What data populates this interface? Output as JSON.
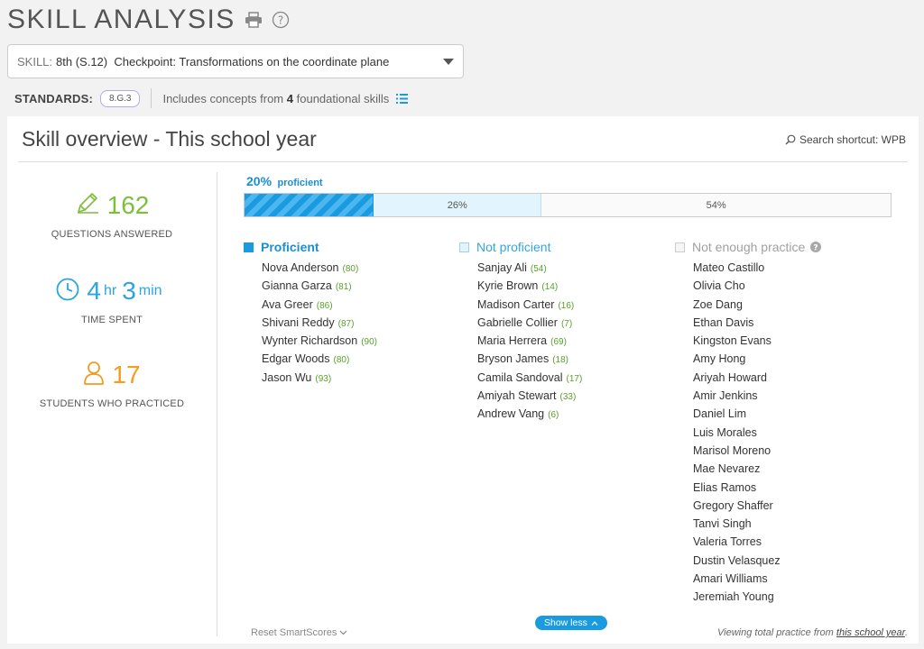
{
  "header": {
    "title": "SKILL ANALYSIS"
  },
  "skill_select": {
    "label": "SKILL:",
    "value": "8th (S.12)  Checkpoint: Transformations on the coordinate plane"
  },
  "standards": {
    "label": "STANDARDS:",
    "badge": "8.G.3",
    "includes_prefix": "Includes concepts from",
    "includes_count": "4",
    "includes_suffix": "foundational skills"
  },
  "panel": {
    "title": "Skill overview - This school year",
    "search_shortcut": "Search shortcut: WPB"
  },
  "stats": {
    "questions_answered": "162",
    "questions_caption": "QUESTIONS ANSWERED",
    "time_hr": "4",
    "time_hr_unit": "hr",
    "time_min": "3",
    "time_min_unit": "min",
    "time_caption": "TIME SPENT",
    "students": "17",
    "students_caption": "STUDENTS WHO PRACTICED"
  },
  "progress": {
    "proficient_pct": "20%",
    "proficient_word": "proficient",
    "not_proficient_pct": "26%",
    "not_enough_pct": "54%",
    "fractions": [
      0.2,
      0.26,
      0.54
    ]
  },
  "columns": {
    "proficient": {
      "title": "Proficient",
      "students": [
        {
          "name": "Nova Anderson",
          "score": "(80)"
        },
        {
          "name": "Gianna Garza",
          "score": "(81)"
        },
        {
          "name": "Ava Greer",
          "score": "(86)"
        },
        {
          "name": "Shivani Reddy",
          "score": "(87)"
        },
        {
          "name": "Wynter Richardson",
          "score": "(90)"
        },
        {
          "name": "Edgar Woods",
          "score": "(80)"
        },
        {
          "name": "Jason Wu",
          "score": "(93)"
        }
      ]
    },
    "not_proficient": {
      "title": "Not proficient",
      "students": [
        {
          "name": "Sanjay Ali",
          "score": "(54)"
        },
        {
          "name": "Kyrie Brown",
          "score": "(14)"
        },
        {
          "name": "Madison Carter",
          "score": "(16)"
        },
        {
          "name": "Gabrielle Collier",
          "score": "(7)"
        },
        {
          "name": "Maria Herrera",
          "score": "(69)"
        },
        {
          "name": "Bryson James",
          "score": "(18)"
        },
        {
          "name": "Camila Sandoval",
          "score": "(17)"
        },
        {
          "name": "Amiyah Stewart",
          "score": "(33)"
        },
        {
          "name": "Andrew Vang",
          "score": "(6)"
        }
      ]
    },
    "not_enough": {
      "title": "Not enough practice",
      "students": [
        {
          "name": "Mateo Castillo"
        },
        {
          "name": "Olivia Cho"
        },
        {
          "name": "Zoe Dang"
        },
        {
          "name": "Ethan Davis"
        },
        {
          "name": "Kingston Evans"
        },
        {
          "name": "Amy Hong"
        },
        {
          "name": "Ariyah Howard"
        },
        {
          "name": "Amir Jenkins"
        },
        {
          "name": "Daniel Lim"
        },
        {
          "name": "Luis Morales"
        },
        {
          "name": "Marisol Moreno"
        },
        {
          "name": "Mae Nevarez"
        },
        {
          "name": "Elias Ramos"
        },
        {
          "name": "Gregory Shaffer"
        },
        {
          "name": "Tanvi Singh"
        },
        {
          "name": "Valeria Torres"
        },
        {
          "name": "Dustin Velasquez"
        },
        {
          "name": "Amari Williams"
        },
        {
          "name": "Jeremiah Young"
        }
      ]
    }
  },
  "footer": {
    "reset": "Reset SmartScores",
    "show_less": "Show less",
    "viewing_prefix": "Viewing total practice from",
    "viewing_link": "this school year",
    "viewing_suffix": "."
  },
  "colors": {
    "proficient": "#1a9be0",
    "questions": "#7cbf3a",
    "time": "#2aa5e3",
    "students": "#f39c1f",
    "score": "#5a9e2a"
  },
  "icons": [
    "print-icon",
    "help-icon",
    "caret-down-icon",
    "list-icon",
    "search-icon",
    "pencil-icon",
    "clock-icon",
    "person-icon",
    "question-icon",
    "chevron-down-icon",
    "chevron-up-icon"
  ]
}
